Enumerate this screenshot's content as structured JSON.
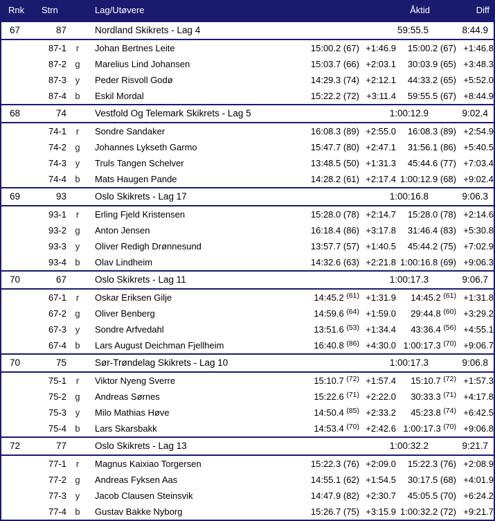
{
  "colors": {
    "navy": "#1a1a6e",
    "row_bg": "#ffffff",
    "text": "#000000"
  },
  "header": {
    "rnk": "Rnk",
    "strn": "Strn",
    "team": "Lag/Utøvere",
    "aktid": "Åktid",
    "diff": "Diff"
  },
  "teams": [
    {
      "rank": "67",
      "bib": "87",
      "name": "Nordland Skikrets - Lag 4",
      "total": "59:55.5",
      "diff": "8:44.9",
      "superscript_ranks": false,
      "legs": [
        {
          "bib_leg": "87-1",
          "leg": "r",
          "athlete": "Johan Bertnes Leite",
          "time": "15:00.2 (67)",
          "behind": "+1:46.9",
          "cumulative": "15:00.2 (67)",
          "cum_behind": "+1:46.8"
        },
        {
          "bib_leg": "87-2",
          "leg": "g",
          "athlete": "Marelius Lind Johansen",
          "time": "15:03.7 (66)",
          "behind": "+2:03.1",
          "cumulative": "30:03.9 (65)",
          "cum_behind": "+3:48.3"
        },
        {
          "bib_leg": "87-3",
          "leg": "y",
          "athlete": "Peder Risvoll Godø",
          "time": "14:29.3 (74)",
          "behind": "+2:12.1",
          "cumulative": "44:33.2 (65)",
          "cum_behind": "+5:52.0"
        },
        {
          "bib_leg": "87-4",
          "leg": "b",
          "athlete": "Eskil Mordal",
          "time": "15:22.2 (72)",
          "behind": "+3:11.4",
          "cumulative": "59:55.5 (67)",
          "cum_behind": "+8:44.9"
        }
      ]
    },
    {
      "rank": "68",
      "bib": "74",
      "name": "Vestfold Og Telemark Skikrets - Lag 5",
      "total": "1:00:12.9",
      "diff": "9:02.4",
      "superscript_ranks": false,
      "legs": [
        {
          "bib_leg": "74-1",
          "leg": "r",
          "athlete": "Sondre Sandaker",
          "time": "16:08.3 (89)",
          "behind": "+2:55.0",
          "cumulative": "16:08.3 (89)",
          "cum_behind": "+2:54.9"
        },
        {
          "bib_leg": "74-2",
          "leg": "g",
          "athlete": "Johannes Lykseth Garmo",
          "time": "15:47.7 (80)",
          "behind": "+2:47.1",
          "cumulative": "31:56.1 (86)",
          "cum_behind": "+5:40.5"
        },
        {
          "bib_leg": "74-3",
          "leg": "y",
          "athlete": "Truls Tangen Schelver",
          "time": "13:48.5 (50)",
          "behind": "+1:31.3",
          "cumulative": "45:44.6 (77)",
          "cum_behind": "+7:03.4"
        },
        {
          "bib_leg": "74-4",
          "leg": "b",
          "athlete": "Mats Haugen Pande",
          "time": "14:28.2 (61)",
          "behind": "+2:17.4",
          "cumulative": "1:00:12.9 (68)",
          "cum_behind": "+9:02.4"
        }
      ]
    },
    {
      "rank": "69",
      "bib": "93",
      "name": "Oslo Skikrets - Lag 17",
      "total": "1:00:16.8",
      "diff": "9:06.3",
      "superscript_ranks": false,
      "legs": [
        {
          "bib_leg": "93-1",
          "leg": "r",
          "athlete": "Erling Fjeld Kristensen",
          "time": "15:28.0 (78)",
          "behind": "+2:14.7",
          "cumulative": "15:28.0 (78)",
          "cum_behind": "+2:14.6"
        },
        {
          "bib_leg": "93-2",
          "leg": "g",
          "athlete": "Anton Jensen",
          "time": "16:18.4 (86)",
          "behind": "+3:17.8",
          "cumulative": "31:46.4 (83)",
          "cum_behind": "+5:30.8"
        },
        {
          "bib_leg": "93-3",
          "leg": "y",
          "athlete": "Oliver Redigh Drønnesund",
          "time": "13:57.7 (57)",
          "behind": "+1:40.5",
          "cumulative": "45:44.2 (75)",
          "cum_behind": "+7:02.9"
        },
        {
          "bib_leg": "93-4",
          "leg": "b",
          "athlete": "Olav Lindheim",
          "time": "14:32.6 (63)",
          "behind": "+2:21.8",
          "cumulative": "1:00:16.8 (69)",
          "cum_behind": "+9:06.3"
        }
      ]
    },
    {
      "rank": "70",
      "bib": "67",
      "name": "Oslo Skikrets - Lag 11",
      "total": "1:00:17.3",
      "diff": "9:06.7",
      "superscript_ranks": true,
      "legs": [
        {
          "bib_leg": "67-1",
          "leg": "r",
          "athlete": "Oskar Eriksen Gilje",
          "time": "14:45.2 (61)",
          "behind": "+1:31.9",
          "cumulative": "14:45.2 (61)",
          "cum_behind": "+1:31.8"
        },
        {
          "bib_leg": "67-2",
          "leg": "g",
          "athlete": "Oliver Benberg",
          "time": "14:59.6 (64)",
          "behind": "+1:59.0",
          "cumulative": "29:44.8 (60)",
          "cum_behind": "+3:29.2"
        },
        {
          "bib_leg": "67-3",
          "leg": "y",
          "athlete": "Sondre Arfvedahl",
          "time": "13:51.6 (53)",
          "behind": "+1:34.4",
          "cumulative": "43:36.4 (56)",
          "cum_behind": "+4:55.1"
        },
        {
          "bib_leg": "67-4",
          "leg": "b",
          "athlete": "Lars August Deichman Fjellheim",
          "time": "16:40.8 (86)",
          "behind": "+4:30.0",
          "cumulative": "1:00:17.3 (70)",
          "cum_behind": "+9:06.7"
        }
      ]
    },
    {
      "rank": "70",
      "bib": "75",
      "name": "Sør-Trøndelag Skikrets - Lag 10",
      "total": "1:00:17.3",
      "diff": "9:06.8",
      "superscript_ranks": true,
      "legs": [
        {
          "bib_leg": "75-1",
          "leg": "r",
          "athlete": "Viktor Nyeng Sverre",
          "time": "15:10.7 (72)",
          "behind": "+1:57.4",
          "cumulative": "15:10.7 (72)",
          "cum_behind": "+1:57.3"
        },
        {
          "bib_leg": "75-2",
          "leg": "g",
          "athlete": "Andreas Sørnes",
          "time": "15:22.6 (71)",
          "behind": "+2:22.0",
          "cumulative": "30:33.3 (71)",
          "cum_behind": "+4:17.8"
        },
        {
          "bib_leg": "75-3",
          "leg": "y",
          "athlete": "Milo Mathias Høve",
          "time": "14:50.4 (85)",
          "behind": "+2:33.2",
          "cumulative": "45:23.8 (74)",
          "cum_behind": "+6:42.5"
        },
        {
          "bib_leg": "75-4",
          "leg": "b",
          "athlete": "Lars Skarsbakk",
          "time": "14:53.4 (70)",
          "behind": "+2:42.6",
          "cumulative": "1:00:17.3 (70)",
          "cum_behind": "+9:06.8"
        }
      ]
    },
    {
      "rank": "72",
      "bib": "77",
      "name": "Oslo Skikrets - Lag 13",
      "total": "1:00:32.2",
      "diff": "9:21.7",
      "superscript_ranks": false,
      "legs": [
        {
          "bib_leg": "77-1",
          "leg": "r",
          "athlete": "Magnus Kaixiao Torgersen",
          "time": "15:22.3 (76)",
          "behind": "+2:09.0",
          "cumulative": "15:22.3 (76)",
          "cum_behind": "+2:08.9"
        },
        {
          "bib_leg": "77-2",
          "leg": "g",
          "athlete": "Andreas Fyksen Aas",
          "time": "14:55.1 (62)",
          "behind": "+1:54.5",
          "cumulative": "30:17.5 (68)",
          "cum_behind": "+4:01.9"
        },
        {
          "bib_leg": "77-3",
          "leg": "y",
          "athlete": "Jacob Clausen Steinsvik",
          "time": "14:47.9 (82)",
          "behind": "+2:30.7",
          "cumulative": "45:05.5 (70)",
          "cum_behind": "+6:24.2"
        },
        {
          "bib_leg": "77-4",
          "leg": "b",
          "athlete": "Gustav Bakke Nyborg",
          "time": "15:26.7 (75)",
          "behind": "+3:15.9",
          "cumulative": "1:00:32.2 (72)",
          "cum_behind": "+9:21.7"
        }
      ]
    }
  ]
}
